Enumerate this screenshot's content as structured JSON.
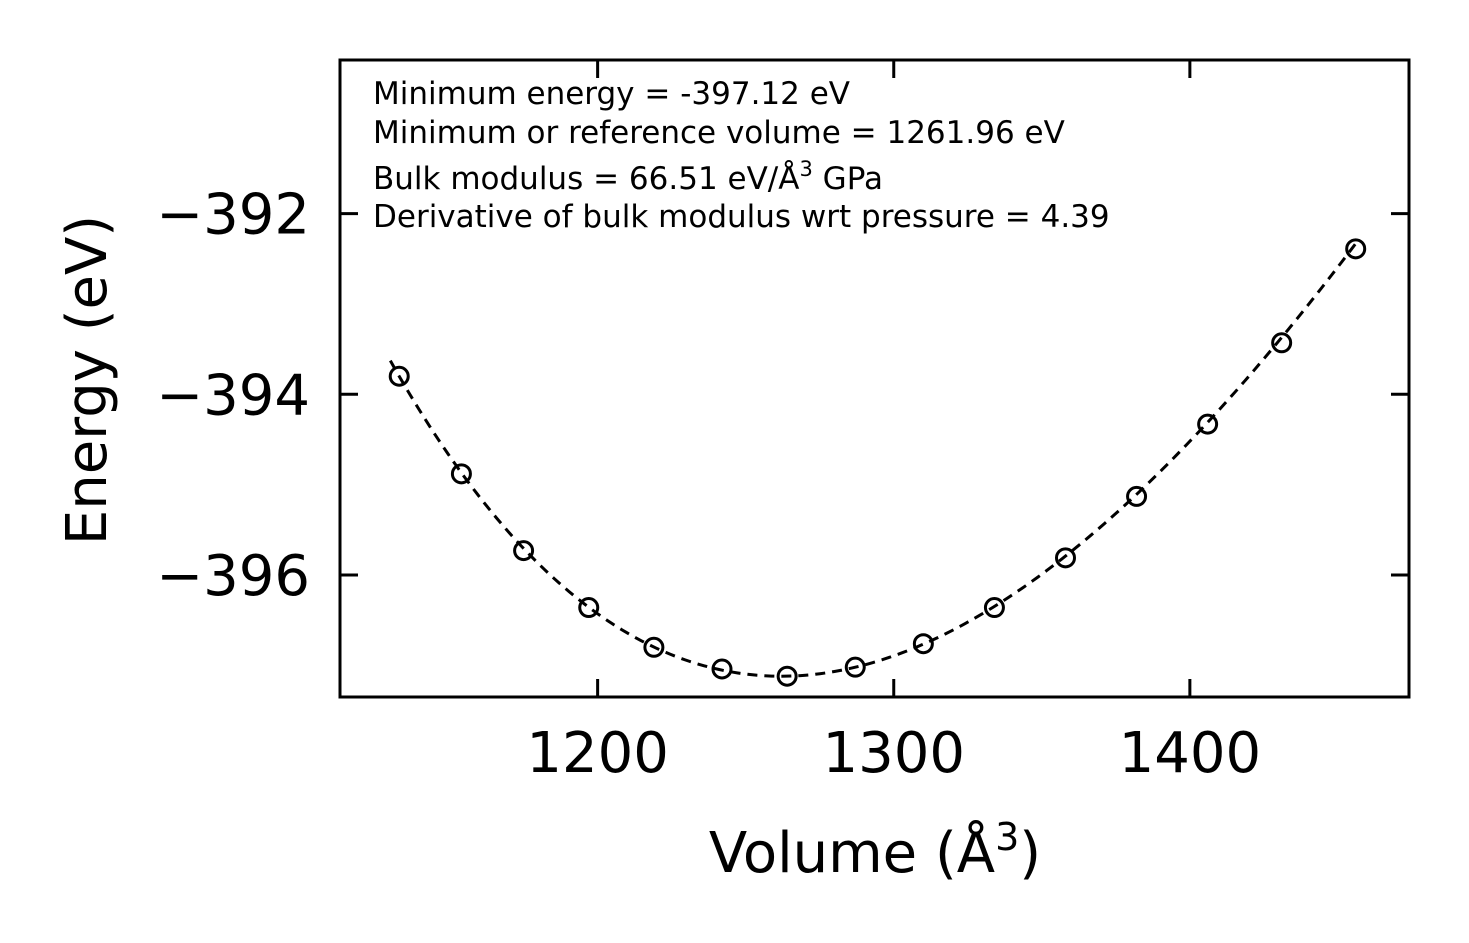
{
  "chart_data": {
    "type": "scatter",
    "title": "",
    "xlabel": "Volume (Å",
    "xlabel_sup": "3",
    "xlabel_end": ")",
    "ylabel": "Energy (eV)",
    "xlim": [
      1113,
      1474
    ],
    "ylim": [
      -397.35,
      -390.3
    ],
    "xticks": [
      1200,
      1300,
      1400
    ],
    "yticks": [
      -392,
      -394,
      -396
    ],
    "xtick_labels": [
      "1200",
      "1300",
      "1400"
    ],
    "ytick_labels": [
      "−392",
      "−394",
      "−396"
    ],
    "series": [
      {
        "name": "data",
        "marker": "open-circle",
        "x": [
          1133,
          1154,
          1175,
          1197,
          1219,
          1242,
          1264,
          1287,
          1310,
          1334,
          1358,
          1382,
          1406,
          1431,
          1456
        ],
        "y": [
          -393.8,
          -394.88,
          -395.73,
          -396.36,
          -396.8,
          -397.04,
          -397.12,
          -397.02,
          -396.76,
          -396.36,
          -395.81,
          -395.13,
          -394.33,
          -393.43,
          -392.39
        ]
      },
      {
        "name": "fit",
        "line": "dashed",
        "fit_params": {
          "E0": -397.12,
          "V0": 1261.96,
          "B0": 66.51,
          "Bp": 4.39
        },
        "x_range": [
          1130,
          1456
        ]
      }
    ],
    "annotations": [
      {
        "text": "Minimum energy = -397.12 eV"
      },
      {
        "text": "Minimum or reference volume = 1261.96 eV"
      },
      {
        "text": "Bulk modulus = 66.51 eV/Å",
        "sup": "3",
        "tail": " GPa"
      },
      {
        "text": "Derivative of bulk modulus wrt pressure = 4.39"
      }
    ],
    "colors": {
      "marker": "#000000",
      "line": "#000000",
      "axes": "#000000"
    },
    "grid": false
  }
}
